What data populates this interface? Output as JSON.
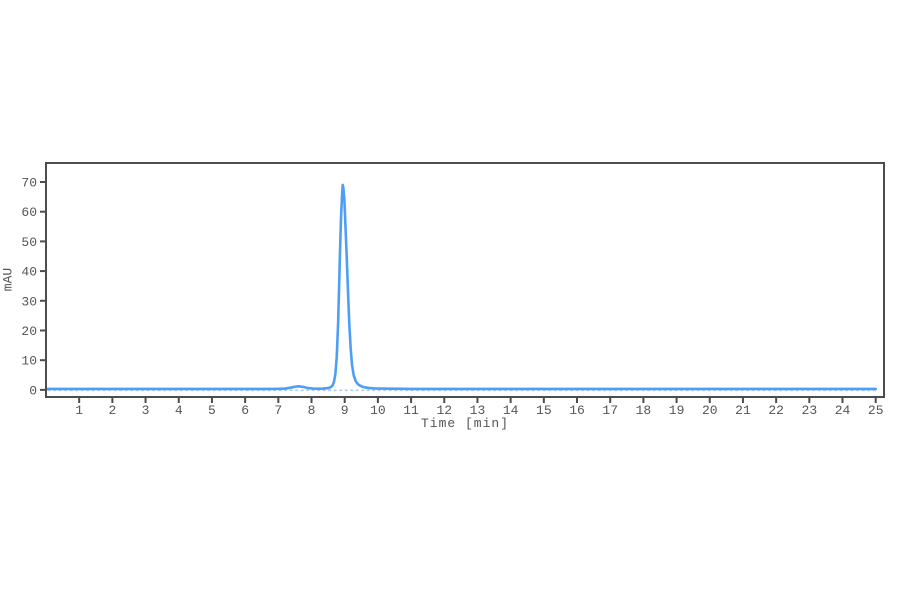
{
  "page": {
    "background_color": "#ffffff",
    "description": "Chromatogram trace of UV absorbance versus time"
  },
  "chart_data": {
    "type": "line",
    "title": "",
    "xlabel": "Time [min]",
    "ylabel": "mAU",
    "xlim": [
      0,
      25.25
    ],
    "ylim": [
      -2.4,
      76.4
    ],
    "xticks": [
      1,
      2,
      3,
      4,
      5,
      6,
      7,
      8,
      9,
      10,
      11,
      12,
      13,
      14,
      15,
      16,
      17,
      18,
      19,
      20,
      21,
      22,
      23,
      24,
      25
    ],
    "yticks": [
      0,
      10,
      20,
      30,
      40,
      50,
      60,
      70
    ],
    "grid": false,
    "legend": null,
    "frame_color": "#4d4d4d",
    "tick_color": "#4d4d4d",
    "tick_text_color": "#555555",
    "line_color": "#4d9ef5",
    "baseline_color": "#aecff7",
    "line_width": 2.6,
    "annotations": {
      "main_peak": {
        "retention_time_min": 8.9,
        "height_mAU": 69
      },
      "minor_peak": {
        "retention_time_min": 7.6,
        "height_mAU": 1.2
      }
    },
    "series": [
      {
        "name": "UV trace",
        "points": [
          [
            0.05,
            0.3
          ],
          [
            0.5,
            0.3
          ],
          [
            1,
            0.3
          ],
          [
            2,
            0.3
          ],
          [
            3,
            0.3
          ],
          [
            4,
            0.3
          ],
          [
            5,
            0.3
          ],
          [
            6,
            0.3
          ],
          [
            6.8,
            0.3
          ],
          [
            7.0,
            0.35
          ],
          [
            7.2,
            0.45
          ],
          [
            7.35,
            0.7
          ],
          [
            7.5,
            1.05
          ],
          [
            7.62,
            1.2
          ],
          [
            7.75,
            1.0
          ],
          [
            7.9,
            0.6
          ],
          [
            8.05,
            0.45
          ],
          [
            8.2,
            0.4
          ],
          [
            8.35,
            0.45
          ],
          [
            8.5,
            0.6
          ],
          [
            8.58,
            0.9
          ],
          [
            8.64,
            1.6
          ],
          [
            8.68,
            2.8
          ],
          [
            8.72,
            5.5
          ],
          [
            8.76,
            11
          ],
          [
            8.8,
            22
          ],
          [
            8.83,
            34
          ],
          [
            8.86,
            47
          ],
          [
            8.89,
            58
          ],
          [
            8.92,
            65.5
          ],
          [
            8.94,
            69
          ],
          [
            8.96,
            68
          ],
          [
            8.99,
            64
          ],
          [
            9.02,
            56
          ],
          [
            9.06,
            45
          ],
          [
            9.1,
            33
          ],
          [
            9.14,
            22
          ],
          [
            9.18,
            14
          ],
          [
            9.22,
            8.5
          ],
          [
            9.27,
            5
          ],
          [
            9.33,
            3
          ],
          [
            9.4,
            1.9
          ],
          [
            9.48,
            1.3
          ],
          [
            9.58,
            0.9
          ],
          [
            9.72,
            0.65
          ],
          [
            9.9,
            0.5
          ],
          [
            10.1,
            0.45
          ],
          [
            10.4,
            0.4
          ],
          [
            10.8,
            0.35
          ],
          [
            11,
            0.3
          ],
          [
            12,
            0.3
          ],
          [
            13,
            0.3
          ],
          [
            14,
            0.3
          ],
          [
            15,
            0.3
          ],
          [
            16,
            0.3
          ],
          [
            17,
            0.3
          ],
          [
            18,
            0.3
          ],
          [
            19,
            0.3
          ],
          [
            20,
            0.3
          ],
          [
            21,
            0.3
          ],
          [
            22,
            0.3
          ],
          [
            23,
            0.3
          ],
          [
            24,
            0.3
          ],
          [
            25,
            0.3
          ]
        ]
      }
    ]
  }
}
